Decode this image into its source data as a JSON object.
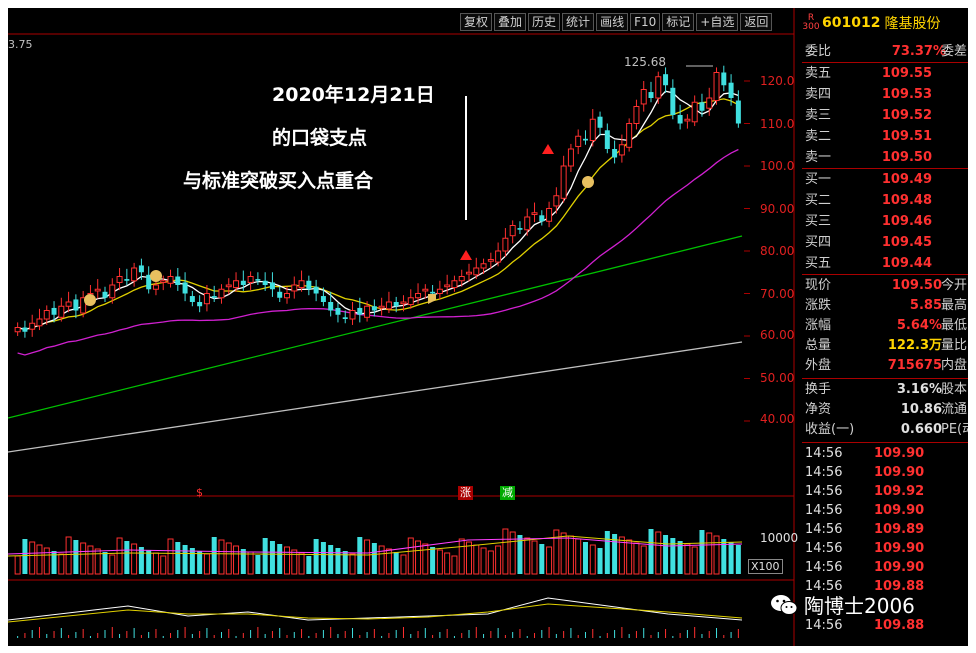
{
  "toolbar": {
    "items": [
      "复权",
      "叠加",
      "历史",
      "统计",
      "画线",
      "F10",
      "标记",
      "+自选",
      "返回"
    ]
  },
  "stock": {
    "market_badge_top": "R",
    "market_badge_bottom": "300",
    "code": "601012",
    "name": "隆基股份"
  },
  "chart": {
    "topleft_value": "3.75",
    "high_label": "125.68",
    "price_ticks": [
      "120.0",
      "110.0",
      "100.0",
      "90.00",
      "80.00",
      "70.00",
      "60.00",
      "50.00",
      "40.00"
    ],
    "annotation": {
      "line1": "2020年12月21日",
      "line2": "的口袋支点",
      "line3": "与标准突破买入点重合"
    },
    "volume_tick": "10000",
    "volume_unit": "X100",
    "markers": {
      "left_red": "$",
      "zhang": "涨",
      "jian": "减"
    }
  },
  "chart_data": {
    "type": "candlestick",
    "price_axis_ticks": [
      120,
      110,
      100,
      90,
      80,
      70,
      60,
      50,
      40
    ],
    "high": 125.68,
    "series": [
      {
        "name": "MA-short",
        "color": "#ffffff"
      },
      {
        "name": "MA-mid",
        "color": "#e0d000"
      },
      {
        "name": "MA-long1",
        "color": "#d020d0"
      },
      {
        "name": "MA-long2",
        "color": "#00c000"
      },
      {
        "name": "MA-long3",
        "color": "#c0c0c0"
      }
    ],
    "closes": [
      62,
      61,
      63,
      64,
      66,
      65,
      67,
      68,
      66,
      69,
      70,
      71,
      69,
      72,
      74,
      73,
      76,
      75,
      71,
      72,
      73,
      74,
      72,
      70,
      68,
      67,
      70,
      69,
      71,
      72,
      73,
      72,
      74,
      73,
      72,
      71,
      69,
      70,
      72,
      73,
      71,
      70,
      68,
      66,
      65,
      64,
      66,
      65,
      67,
      66,
      67,
      68,
      67,
      68,
      69,
      70,
      71,
      70,
      71,
      72,
      73,
      74,
      75,
      76,
      77,
      78,
      80,
      83,
      86,
      85,
      88,
      89,
      87,
      90,
      93,
      100,
      104,
      107,
      106,
      111,
      109,
      104,
      102,
      105,
      110,
      114,
      118,
      116,
      121,
      119,
      112,
      110,
      111,
      115,
      113,
      116,
      122,
      119,
      116,
      110
    ]
  },
  "quote": {
    "weibi": {
      "label": "委比",
      "value": "73.37%",
      "label2": "委差"
    },
    "sells": [
      {
        "label": "卖五",
        "price": "109.55"
      },
      {
        "label": "卖四",
        "price": "109.53"
      },
      {
        "label": "卖三",
        "price": "109.52"
      },
      {
        "label": "卖二",
        "price": "109.51"
      },
      {
        "label": "卖一",
        "price": "109.50"
      }
    ],
    "buys": [
      {
        "label": "买一",
        "price": "109.49"
      },
      {
        "label": "买二",
        "price": "109.48"
      },
      {
        "label": "买三",
        "price": "109.46"
      },
      {
        "label": "买四",
        "price": "109.45"
      },
      {
        "label": "买五",
        "price": "109.44"
      }
    ],
    "stats": [
      {
        "label": "现价",
        "value": "109.50",
        "label2": "今开",
        "color": "#ff3030"
      },
      {
        "label": "涨跌",
        "value": "5.85",
        "label2": "最高",
        "color": "#ff3030"
      },
      {
        "label": "涨幅",
        "value": "5.64%",
        "label2": "最低",
        "color": "#ff3030"
      },
      {
        "label": "总量",
        "value": "122.3万",
        "label2": "量比",
        "color": "#ffd400"
      },
      {
        "label": "外盘",
        "value": "715675",
        "label2": "内盘",
        "color": "#ff3030"
      },
      {
        "label": "换手",
        "value": "3.16%",
        "label2": "股本",
        "color": "#e0e0e0"
      },
      {
        "label": "净资",
        "value": "10.86",
        "label2": "流通",
        "color": "#e0e0e0"
      },
      {
        "label": "收益(一)",
        "value": "0.660",
        "label2": "PE(动",
        "color": "#e0e0e0"
      }
    ],
    "ticks": [
      {
        "time": "14:56",
        "price": "109.90"
      },
      {
        "time": "14:56",
        "price": "109.90"
      },
      {
        "time": "14:56",
        "price": "109.92"
      },
      {
        "time": "14:56",
        "price": "109.90"
      },
      {
        "time": "14:56",
        "price": "109.89"
      },
      {
        "time": "14:56",
        "price": "109.90"
      },
      {
        "time": "14:56",
        "price": "109.90"
      },
      {
        "time": "14:56",
        "price": "109.88"
      },
      {
        "time": "14:56",
        "price": "109.88"
      }
    ]
  },
  "watermark": {
    "text": "陶博士2006"
  }
}
